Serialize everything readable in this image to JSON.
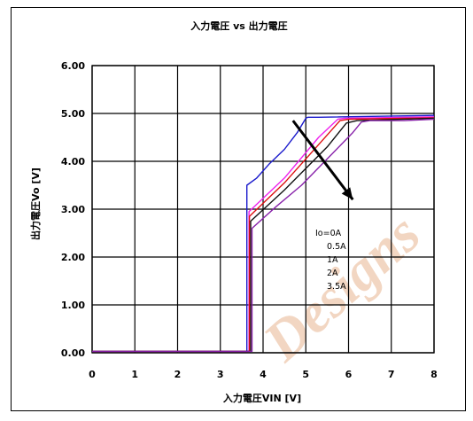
{
  "chart_data": {
    "type": "line",
    "title": "入力電圧 vs 出力電圧",
    "xlabel": "入力電圧VIN [V]",
    "ylabel": "出力電圧Vo [V]",
    "xlim": [
      0,
      8
    ],
    "ylim": [
      0,
      6
    ],
    "x_ticks": [
      "0",
      "1",
      "2",
      "3",
      "4",
      "5",
      "6",
      "7",
      "8"
    ],
    "y_ticks": [
      "0.00",
      "1.00",
      "2.00",
      "3.00",
      "4.00",
      "5.00",
      "6.00"
    ],
    "grid": true,
    "legend_position": "center-right",
    "legend_entries": [
      "Io=0A",
      "0.5A",
      "1A",
      "2A",
      "3.5A"
    ],
    "series": [
      {
        "name": "Io=0A",
        "color": "#1a1acc",
        "x": [
          0,
          3.6,
          3.62,
          3.62,
          3.85,
          4.15,
          4.5,
          4.8,
          5.0,
          5.05,
          5.3,
          8.0
        ],
        "y": [
          0.03,
          0.03,
          0.03,
          3.5,
          3.65,
          3.95,
          4.25,
          4.6,
          4.9,
          4.92,
          4.92,
          4.96
        ]
      },
      {
        "name": "0.5A",
        "color": "#ee22ee",
        "x": [
          0,
          3.65,
          3.67,
          3.67,
          4.5,
          5.3,
          5.75,
          5.9,
          8.0
        ],
        "y": [
          0.03,
          0.03,
          0.03,
          2.95,
          3.65,
          4.5,
          4.88,
          4.9,
          4.93
        ]
      },
      {
        "name": "1A",
        "color": "#dd1111",
        "x": [
          0,
          3.66,
          3.68,
          3.68,
          4.5,
          5.4,
          5.8,
          6.0,
          8.0
        ],
        "y": [
          0.03,
          0.03,
          0.03,
          2.85,
          3.55,
          4.45,
          4.85,
          4.88,
          4.91
        ]
      },
      {
        "name": "2A",
        "color": "#111111",
        "x": [
          0,
          3.69,
          3.71,
          3.71,
          4.5,
          5.5,
          5.95,
          6.2,
          8.0
        ],
        "y": [
          0.03,
          0.03,
          0.03,
          2.75,
          3.4,
          4.3,
          4.8,
          4.85,
          4.9
        ]
      },
      {
        "name": "3.5A",
        "color": "#8822aa",
        "x": [
          0,
          3.72,
          3.74,
          3.74,
          4.3,
          4.9,
          5.5,
          6.1,
          6.3,
          6.5,
          7.3,
          8.0
        ],
        "y": [
          0.03,
          0.03,
          0.03,
          2.6,
          3.05,
          3.5,
          4.05,
          4.6,
          4.82,
          4.85,
          4.85,
          4.88
        ]
      }
    ],
    "annotations": [
      {
        "type": "arrow",
        "color": "#000000",
        "from": [
          4.7,
          4.85
        ],
        "to": [
          6.1,
          3.2
        ]
      }
    ]
  },
  "watermark": {
    "text": "Designs",
    "color": "#f2d6c2"
  }
}
